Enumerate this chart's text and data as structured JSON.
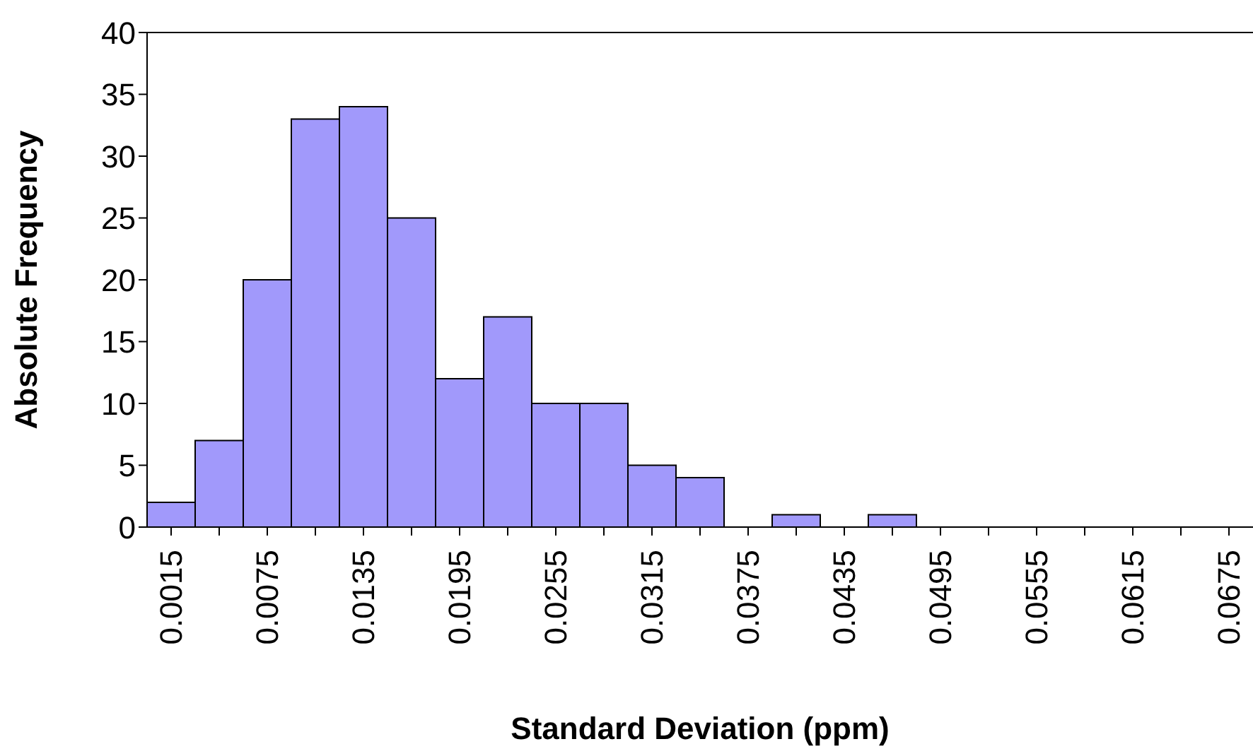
{
  "chart_data": {
    "type": "bar",
    "xlabel": "Standard Deviation (ppm)",
    "ylabel": "Absolute Frequency",
    "categories": [
      "0.0015",
      null,
      "0.0075",
      null,
      "0.0135",
      null,
      "0.0195",
      null,
      "0.0255",
      null,
      "0.0315",
      null,
      "0.0375",
      null,
      "0.0435",
      null,
      "0.0495",
      null,
      "0.0555",
      null,
      "0.0615",
      null,
      "0.0675"
    ],
    "values": [
      2,
      7,
      20,
      33,
      34,
      25,
      12,
      17,
      10,
      10,
      5,
      4,
      0,
      1,
      0,
      1,
      0,
      0,
      0,
      0,
      0,
      0,
      0
    ],
    "color": "#a199fb",
    "ylim": [
      0,
      40
    ],
    "yticks": [
      0,
      5,
      10,
      15,
      20,
      25,
      30,
      35,
      40
    ],
    "grid": false,
    "legend": false
  }
}
